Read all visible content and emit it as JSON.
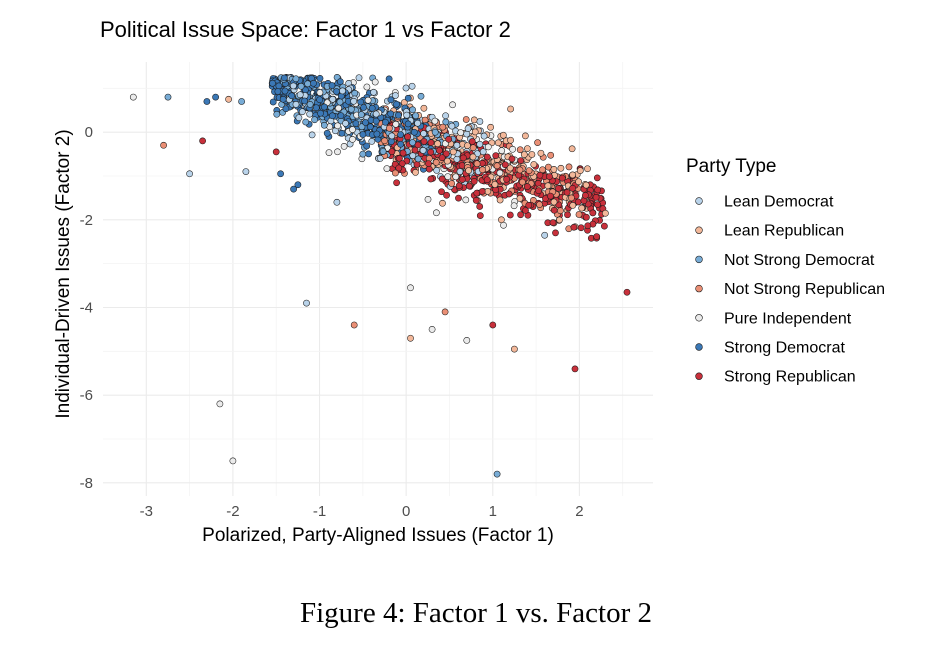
{
  "chart_data": {
    "type": "scatter",
    "title": "Political Issue Space: Factor 1 vs Factor 2",
    "xlabel": "Polarized, Party-Aligned Issues (Factor 1)",
    "ylabel": "Individual-Driven Issues (Factor 2)",
    "xlim": [
      -3.5,
      2.85
    ],
    "ylim": [
      -8.3,
      1.6
    ],
    "x_ticks": [
      -3,
      -2,
      -1,
      0,
      1,
      2
    ],
    "x_tick_labels": [
      "-3",
      "-2",
      "-1",
      "0",
      "1",
      "2"
    ],
    "y_ticks": [
      0,
      -2,
      -4,
      -6,
      -8
    ],
    "y_tick_labels": [
      "0",
      "-2",
      "-4",
      "-6",
      "-8"
    ],
    "grid": true,
    "legend_position": "right",
    "legend_title": "Party Type",
    "colors": {
      "Lean Democrat": "#b9d3ea",
      "Lean Republican": "#f3b89a",
      "Not Strong Democrat": "#78acd6",
      "Not Strong Republican": "#ea8f75",
      "Pure Independent": "#ebebeb",
      "Strong Democrat": "#3b78b6",
      "Strong Republican": "#c8303b"
    },
    "series": [
      {
        "name": "Lean Democrat",
        "points": [
          [
            -2.5,
            -0.95
          ],
          [
            -1.85,
            -0.9
          ],
          [
            -1.15,
            -3.9
          ],
          [
            -0.8,
            -1.6
          ],
          [
            -0.7,
            0.2
          ],
          [
            -0.3,
            -0.6
          ],
          [
            1.6,
            -2.35
          ]
        ]
      },
      {
        "name": "Lean Republican",
        "points": [
          [
            -2.05,
            0.75
          ],
          [
            0.05,
            -4.7
          ],
          [
            1.25,
            -4.95
          ],
          [
            2.3,
            -1.85
          ],
          [
            1.1,
            -2.0
          ]
        ]
      },
      {
        "name": "Not Strong Democrat",
        "points": [
          [
            -2.75,
            0.8
          ],
          [
            -1.9,
            0.7
          ],
          [
            -0.5,
            -0.5
          ],
          [
            1.05,
            -7.8
          ]
        ]
      },
      {
        "name": "Not Strong Republican",
        "points": [
          [
            -2.8,
            -0.3
          ],
          [
            -0.6,
            -4.4
          ],
          [
            0.45,
            -4.1
          ]
        ]
      },
      {
        "name": "Pure Independent",
        "points": [
          [
            -3.15,
            0.8
          ],
          [
            -2.15,
            -6.2
          ],
          [
            -2.0,
            -7.5
          ],
          [
            0.05,
            -3.55
          ],
          [
            0.3,
            -4.5
          ],
          [
            0.7,
            -4.75
          ]
        ]
      },
      {
        "name": "Strong Democrat",
        "points": [
          [
            -2.3,
            0.7
          ],
          [
            -2.2,
            0.8
          ],
          [
            -1.45,
            -0.95
          ],
          [
            -1.25,
            -1.2
          ],
          [
            -1.3,
            -1.3
          ]
        ]
      },
      {
        "name": "Strong Republican",
        "points": [
          [
            -2.35,
            -0.2
          ],
          [
            -1.5,
            -0.45
          ],
          [
            1.0,
            -4.4
          ],
          [
            1.95,
            -5.4
          ],
          [
            2.55,
            -3.65
          ]
        ]
      }
    ],
    "clusters": [
      {
        "name": "Strong Democrat",
        "n": 340,
        "x": [
          -1.55,
          0.3
        ],
        "y_center": [
          1.1,
          -0.2
        ],
        "spread": 0.28
      },
      {
        "name": "Not Strong Democrat",
        "n": 190,
        "x": [
          -1.5,
          0.6
        ],
        "y_center": [
          1.0,
          -0.4
        ],
        "spread": 0.35
      },
      {
        "name": "Lean Democrat",
        "n": 160,
        "x": [
          -1.4,
          0.9
        ],
        "y_center": [
          0.9,
          -0.6
        ],
        "spread": 0.4
      },
      {
        "name": "Pure Independent",
        "n": 90,
        "x": [
          -1.0,
          1.3
        ],
        "y_center": [
          0.5,
          -0.9
        ],
        "spread": 0.45
      },
      {
        "name": "Lean Republican",
        "n": 200,
        "x": [
          -0.2,
          2.1
        ],
        "y_center": [
          0.1,
          -1.5
        ],
        "spread": 0.4
      },
      {
        "name": "Not Strong Republican",
        "n": 170,
        "x": [
          -0.3,
          2.0
        ],
        "y_center": [
          0.0,
          -1.5
        ],
        "spread": 0.38
      },
      {
        "name": "Strong Republican",
        "n": 360,
        "x": [
          -0.2,
          2.3
        ],
        "y_center": [
          -0.3,
          -1.75
        ],
        "spread": 0.33
      }
    ]
  },
  "caption": "Figure 4: Factor 1 vs. Factor 2"
}
